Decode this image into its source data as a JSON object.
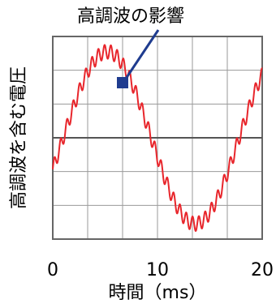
{
  "chart_data": {
    "type": "line",
    "title": "",
    "xlabel": "時間（ms）",
    "ylabel": "高調波を含む電圧",
    "xlim": [
      0,
      20
    ],
    "x_ticks": [
      "0",
      "10",
      "20"
    ],
    "grid": true,
    "annotation": "高調波の影響",
    "series": [
      {
        "color": "#e8262c",
        "fundamental": {
          "shape": "sine",
          "offset_ms": 1.0,
          "period_ms": 16.8,
          "amplitude_frac_of_half_height": 0.85
        },
        "harmonic": {
          "period_ms": 0.6,
          "amplitude_frac_of_half_height": 0.07
        }
      }
    ],
    "colors": {
      "grid": "#9a9a9a",
      "frame": "#666666",
      "center_line": "#555555",
      "arrow": "#1f3c8f"
    }
  }
}
